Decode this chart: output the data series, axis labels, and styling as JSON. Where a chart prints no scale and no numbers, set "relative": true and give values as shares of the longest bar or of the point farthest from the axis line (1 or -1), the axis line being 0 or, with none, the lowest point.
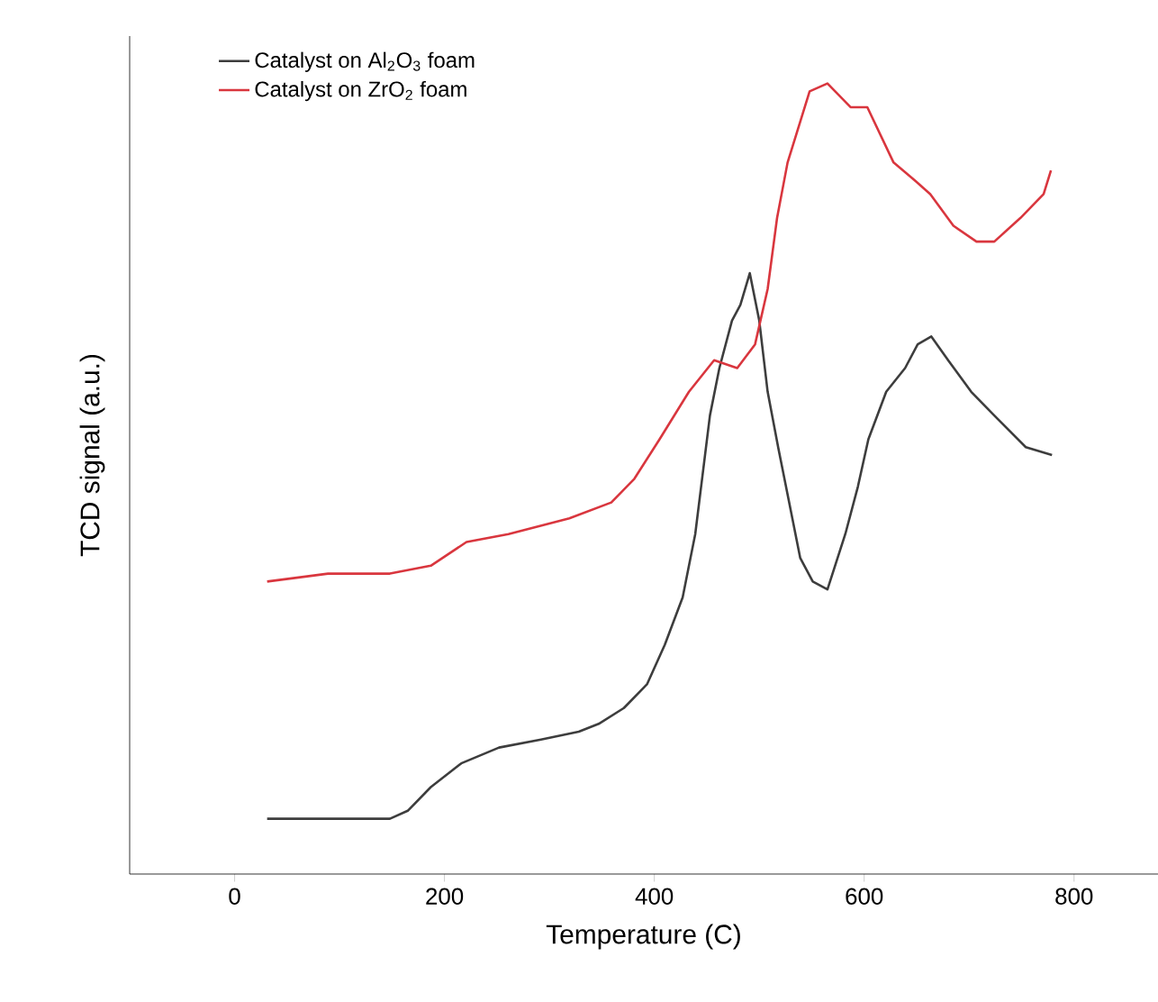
{
  "chart_data": {
    "type": "line",
    "xlabel": "Temperature (C)",
    "ylabel": "TCD signal (a.u.)",
    "relative": true,
    "xlim": [
      -100,
      880
    ],
    "xticks": [
      0,
      200,
      400,
      600,
      800
    ],
    "legend": "top left",
    "series": [
      {
        "name": "Catalyst on Al$_{2}$O$_{3}$ foam",
        "color": "#3d3d3d",
        "x": [
          31,
          89,
          148,
          165,
          187,
          216,
          252,
          292,
          328,
          347,
          371,
          393,
          410,
          427,
          439,
          453,
          462,
          474,
          482,
          491,
          500,
          508,
          518,
          527,
          539,
          551,
          565,
          582,
          594,
          604,
          621,
          639,
          651,
          664,
          680,
          702,
          724,
          754,
          779
        ],
        "values": [
          0.07,
          0.07,
          0.07,
          0.08,
          0.11,
          0.14,
          0.16,
          0.17,
          0.18,
          0.19,
          0.21,
          0.24,
          0.29,
          0.35,
          0.43,
          0.58,
          0.64,
          0.7,
          0.72,
          0.76,
          0.7,
          0.61,
          0.54,
          0.48,
          0.4,
          0.37,
          0.36,
          0.43,
          0.49,
          0.55,
          0.61,
          0.64,
          0.67,
          0.68,
          0.65,
          0.61,
          0.58,
          0.54,
          0.53
        ]
      },
      {
        "name": "Catalyst on ZrO$_{2}$ foam",
        "color": "#d9363e",
        "x": [
          31,
          89,
          148,
          187,
          221,
          261,
          319,
          359,
          381,
          405,
          433,
          457,
          479,
          496,
          508,
          517,
          527,
          548,
          565,
          587,
          603,
          628,
          646,
          663,
          685,
          707,
          724,
          749,
          771,
          778
        ],
        "values": [
          0.37,
          0.38,
          0.38,
          0.39,
          0.42,
          0.43,
          0.45,
          0.47,
          0.5,
          0.55,
          0.61,
          0.65,
          0.64,
          0.67,
          0.74,
          0.83,
          0.9,
          0.99,
          1.0,
          0.97,
          0.97,
          0.9,
          0.88,
          0.86,
          0.82,
          0.8,
          0.8,
          0.83,
          0.86,
          0.89
        ]
      }
    ]
  }
}
